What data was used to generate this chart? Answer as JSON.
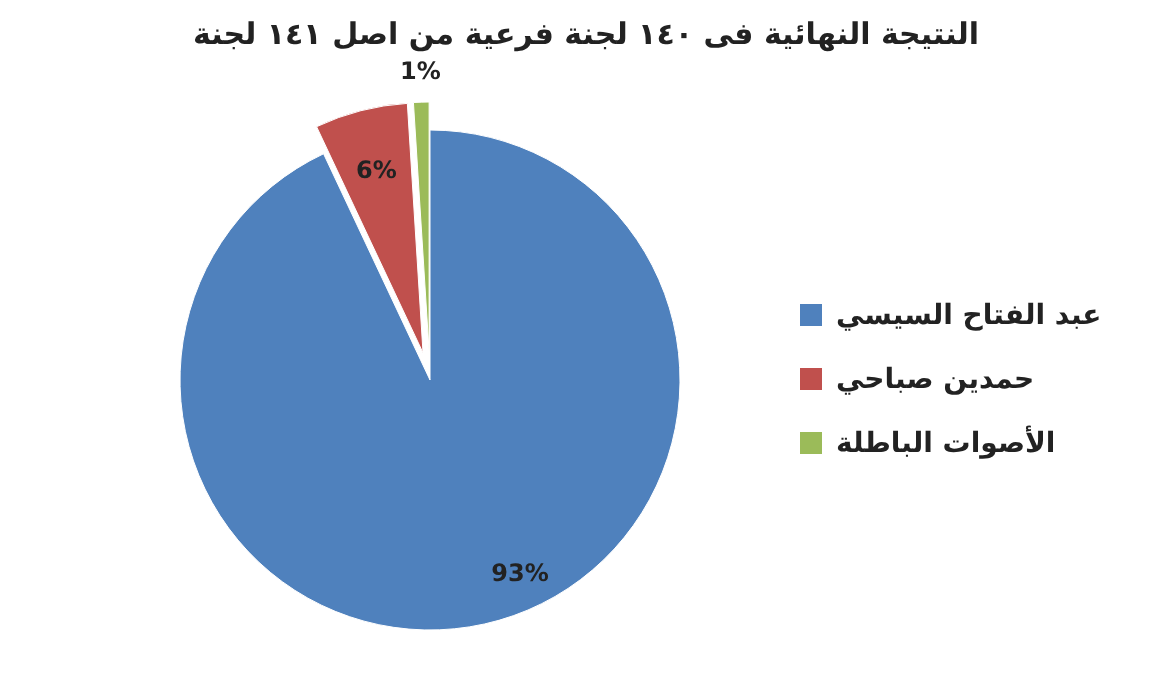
{
  "chart_data": {
    "type": "pie",
    "title": "النتيجة النهائية فى ١٤٠ لجنة فرعية من اصل ١٤١ لجنة",
    "categories": [
      "عبد الفتاح السيسي",
      "حمدين صباحي",
      "الأصوات الباطلة"
    ],
    "values": [
      93,
      6,
      1
    ],
    "colors": [
      "#4f81bd",
      "#c0504d",
      "#9bbb59"
    ],
    "value_labels": [
      "93%",
      "6%",
      "1%"
    ],
    "legend": "right"
  }
}
